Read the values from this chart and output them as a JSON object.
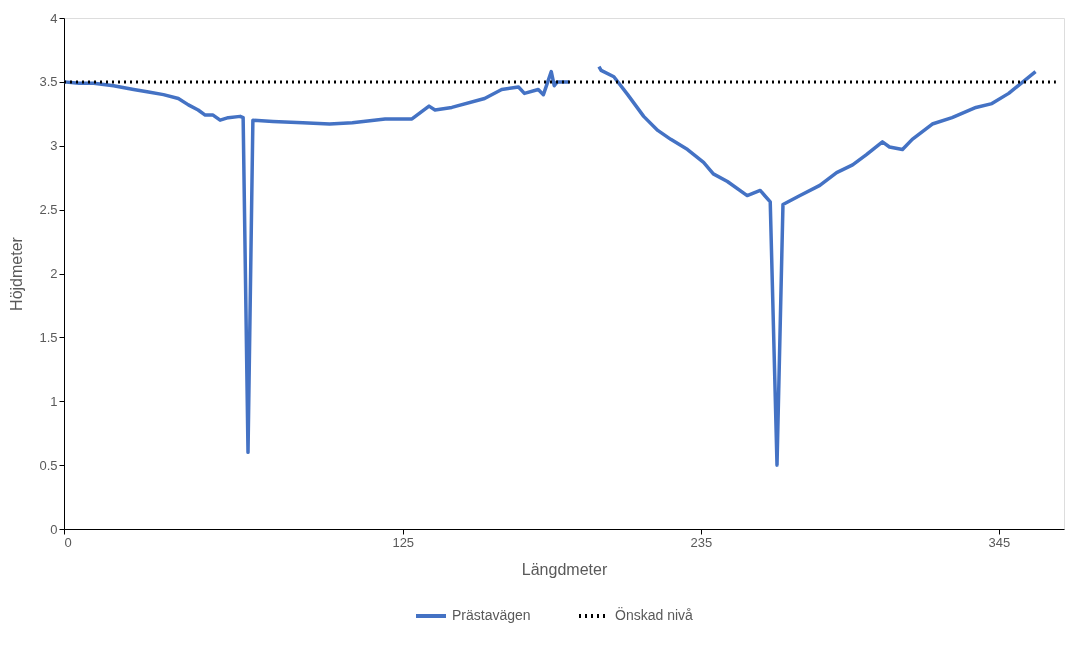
{
  "chart_data": {
    "type": "line",
    "xlabel": "Längdmeter",
    "ylabel": "Höjdmeter",
    "xlim": [
      0,
      369
    ],
    "xticks": [
      0,
      125,
      235,
      345
    ],
    "ylim": [
      0,
      4
    ],
    "yticks": [
      0,
      0.5,
      1,
      1.5,
      2,
      2.5,
      3,
      3.5,
      4
    ],
    "grid": false,
    "legend": "bottom",
    "marker": "none",
    "series": [
      {
        "name": "Prästavägen",
        "color": "#4472c4",
        "line_style": "solid",
        "x": [
          0,
          5.5,
          11,
          18.3,
          25.7,
          31.2,
          36.7,
          42.2,
          45.9,
          49.5,
          52.1,
          55,
          57.6,
          60.6,
          65,
          66.1,
          67.9,
          69.7,
          77.1,
          88.1,
          98,
          106.4,
          118.5,
          128.4,
          134.7,
          136.9,
          143.1,
          155.2,
          161.5,
          167.7,
          169.9,
          175,
          176.9,
          179.8,
          180.9,
          182,
          186.4,
          192,
          197.4,
          198.2,
          202.9,
          208,
          213.9,
          219.1,
          223.9,
          230.1,
          236,
          239.6,
          244.8,
          252.1,
          256.9,
          260.6,
          263.1,
          265.3,
          271.6,
          278.9,
          285.1,
          291,
          296.1,
          302,
          304.6,
          309.4,
          313,
          320.4,
          327.7,
          336.5,
          342.4,
          348.6,
          358.5
        ],
        "values": [
          3.5,
          3.49,
          3.49,
          3.47,
          3.44,
          3.42,
          3.4,
          3.37,
          3.32,
          3.28,
          3.24,
          3.24,
          3.2,
          3.22,
          3.23,
          3.22,
          0.6,
          3.2,
          3.19,
          3.18,
          3.17,
          3.18,
          3.21,
          3.21,
          3.31,
          3.28,
          3.3,
          3.37,
          3.44,
          3.46,
          3.41,
          3.44,
          3.4,
          3.58,
          3.47,
          3.5,
          3.5,
          null,
          3.62,
          3.59,
          3.54,
          3.4,
          3.23,
          3.12,
          3.05,
          2.97,
          2.87,
          2.78,
          2.72,
          2.61,
          2.65,
          2.56,
          0.5,
          2.54,
          2.61,
          2.69,
          2.79,
          2.85,
          2.93,
          3.03,
          2.99,
          2.97,
          3.05,
          3.17,
          3.22,
          3.3,
          3.33,
          3.41,
          3.58
        ]
      },
      {
        "name": "Önskad nivå",
        "color": "#000000",
        "line_style": "dotted",
        "x": [
          0,
          366
        ],
        "values": [
          3.5,
          3.5
        ]
      }
    ]
  }
}
